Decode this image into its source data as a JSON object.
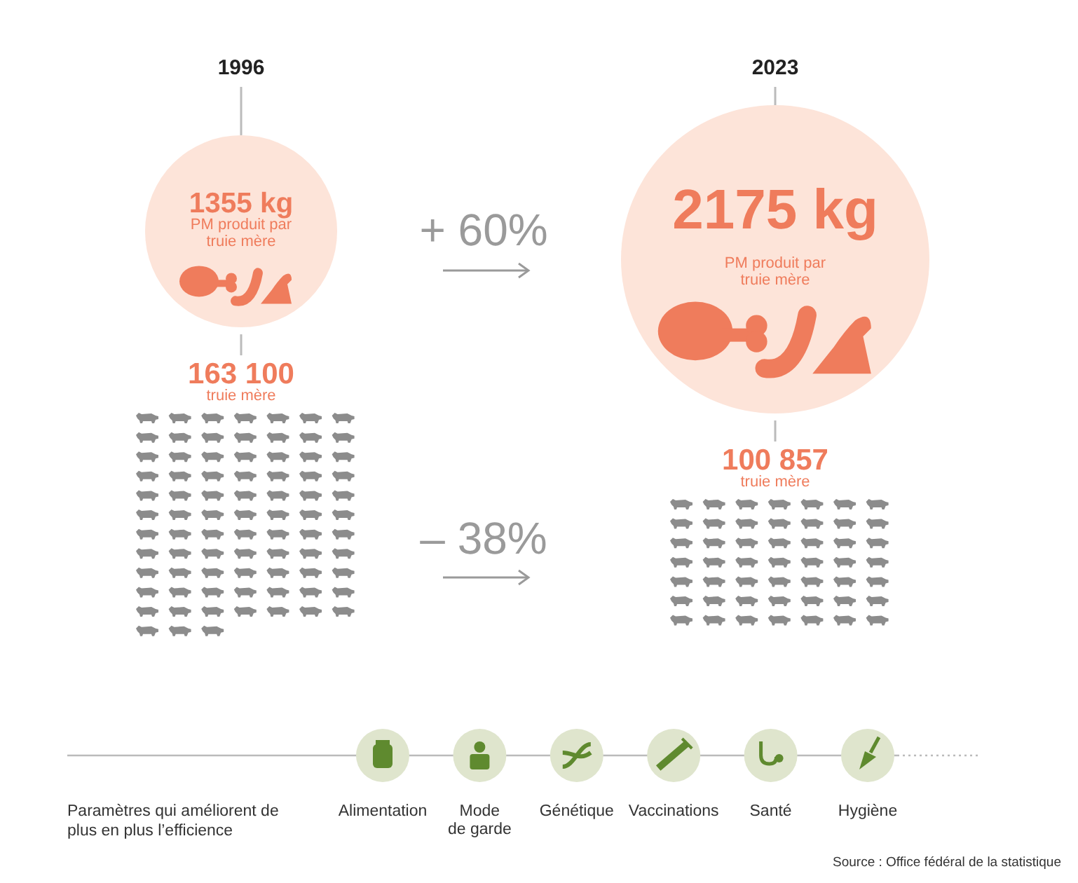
{
  "chart_data": {
    "type": "other",
    "categories": [
      "1996",
      "2023"
    ],
    "series": [
      {
        "name": "PM produit par truie mère",
        "color": "#fde4d9",
        "values": [
          1355,
          2175
        ],
        "value_labels": [
          "1355 kg",
          "2175 kg"
        ]
      },
      {
        "name": "truie mère",
        "color": "#ef7c5c",
        "values": [
          163100,
          100857
        ],
        "value_labels": [
          "163 100",
          "100 857"
        ]
      }
    ],
    "annotations": [
      "+ 60%",
      "– 38%",
      "Paramètres qui améliorent de plus en plus l’efficience",
      "Alimentation",
      "Mode de garde",
      "Génétique",
      "Vaccinations",
      "Santé",
      "Hygiène",
      "Source : Office fédéral de la statistique"
    ]
  }
}
